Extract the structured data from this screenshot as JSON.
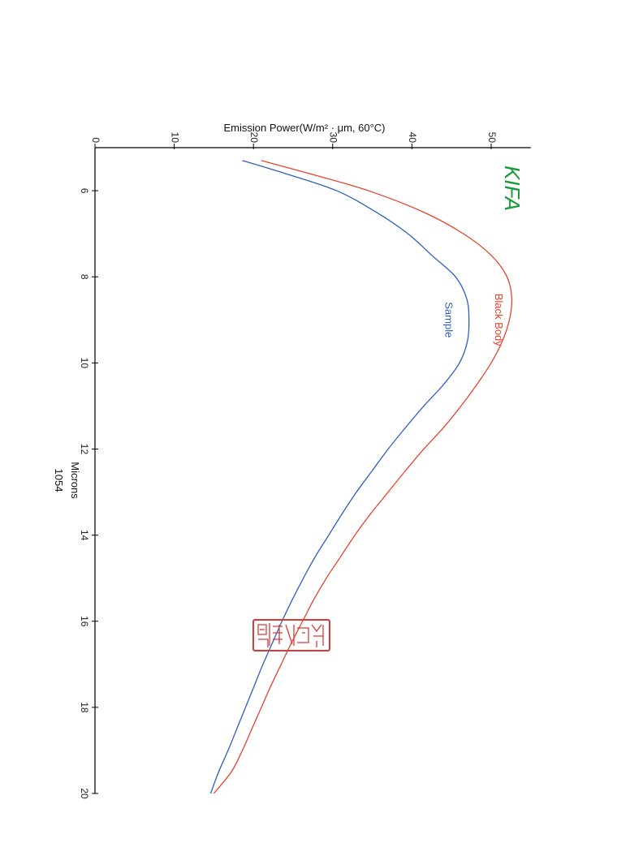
{
  "chart_data": {
    "type": "line",
    "ylabel": "Emission Power(W/m² · μm, 60°C)",
    "xlabel": "Microns",
    "sample_id": "1054",
    "xlim": [
      5,
      20
    ],
    "ylim": [
      0,
      55
    ],
    "x_ticks": [
      6,
      8,
      10,
      12,
      14,
      16,
      18,
      20
    ],
    "x_tick_labels": [
      "6",
      "8",
      "10",
      "12",
      "14",
      "16",
      "18",
      "20"
    ],
    "y_ticks": [
      0,
      10,
      20,
      30,
      40,
      50
    ],
    "y_tick_labels": [
      "0",
      "10",
      "20",
      "30",
      "40",
      "50"
    ],
    "series": [
      {
        "name": "Black Body",
        "color": "#e8432c",
        "x": [
          5.3,
          5.6,
          6.0,
          6.5,
          7.0,
          7.5,
          8.0,
          8.5,
          9.0,
          9.5,
          10.0,
          10.5,
          11.0,
          11.5,
          12.0,
          12.5,
          13.0,
          13.5,
          14.0,
          14.5,
          15.0,
          15.5,
          16.0,
          16.5,
          17.0,
          17.5,
          18.0,
          18.5,
          19.0,
          19.5,
          20.0
        ],
        "values": [
          21.0,
          27.0,
          34.5,
          41.5,
          46.5,
          50.0,
          52.0,
          52.6,
          52.3,
          51.4,
          50.0,
          48.2,
          46.2,
          44.0,
          41.5,
          39.2,
          37.0,
          34.8,
          32.8,
          31.0,
          29.2,
          27.6,
          26.2,
          24.8,
          23.5,
          22.2,
          21.0,
          19.8,
          18.6,
          17.2,
          15.0
        ]
      },
      {
        "name": "Sample",
        "color": "#2e5fbf",
        "x": [
          5.3,
          5.6,
          6.0,
          6.5,
          7.0,
          7.5,
          8.0,
          8.5,
          9.0,
          9.5,
          10.0,
          10.5,
          11.0,
          11.5,
          12.0,
          12.5,
          13.0,
          13.5,
          14.0,
          14.5,
          15.0,
          15.5,
          16.0,
          16.5,
          17.0,
          17.5,
          18.0,
          18.5,
          19.0,
          19.5,
          20.0
        ],
        "values": [
          18.6,
          24.0,
          30.5,
          35.5,
          39.5,
          42.5,
          45.5,
          46.9,
          47.2,
          47.0,
          46.0,
          44.0,
          41.5,
          39.2,
          37.0,
          35.0,
          33.0,
          31.2,
          29.5,
          27.8,
          26.3,
          24.9,
          23.6,
          22.4,
          21.2,
          20.1,
          19.0,
          17.9,
          16.8,
          15.6,
          14.6
        ]
      }
    ],
    "series_labels": [
      {
        "text": "Black Body",
        "x": 9.0,
        "y": 50.5
      },
      {
        "text": "Sample",
        "x": 9.0,
        "y": 44.2
      }
    ],
    "logo": "KIFA",
    "stamp": "seal",
    "grid": false
  }
}
